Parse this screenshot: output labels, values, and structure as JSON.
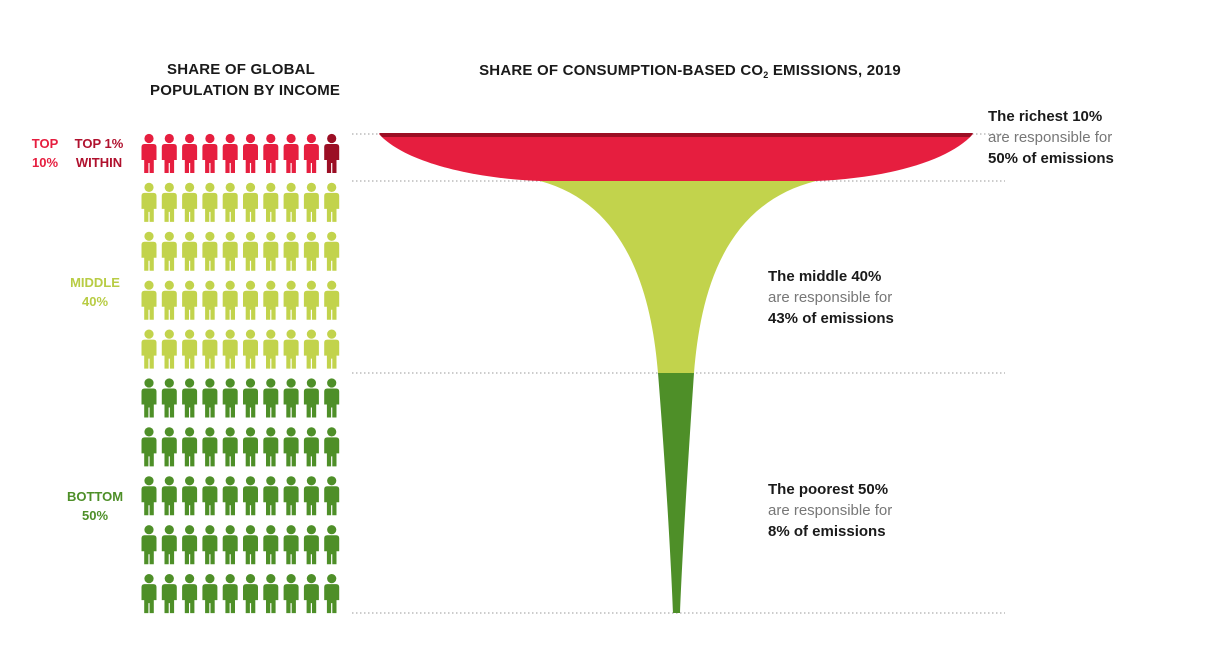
{
  "headings": {
    "population": [
      "SHARE OF GLOBAL",
      "POPULATION BY INCOME"
    ],
    "emissions": {
      "before": "SHARE OF CONSUMPTION-BASED CO",
      "sub": "2",
      "after": " EMISSIONS, 2019"
    }
  },
  "groups": {
    "top": {
      "label": [
        "TOP",
        "10%"
      ],
      "color": "#e61e3f"
    },
    "top1": {
      "label": [
        "TOP 1%",
        "WITHIN"
      ],
      "color": "#9b0e24"
    },
    "middle": {
      "label": [
        "MIDDLE",
        "40%"
      ],
      "color": "#c2d34c"
    },
    "bottom": {
      "label": [
        "BOTTOM",
        "50%"
      ],
      "color": "#4e8f28"
    }
  },
  "annotations": {
    "rich": [
      "The richest 10%",
      "are responsible for",
      "50% of emissions"
    ],
    "middle": [
      "The middle 40%",
      "are responsible for",
      "43% of emissions"
    ],
    "poor": [
      "The poorest 50%",
      "are responsible for",
      "8% of emissions"
    ]
  },
  "chart_data": {
    "type": "funnel",
    "population_share": [
      {
        "group": "Top 10%",
        "value": 10
      },
      {
        "group": "Middle 40%",
        "value": 40
      },
      {
        "group": "Bottom 50%",
        "value": 50
      },
      {
        "group": "Top 1% within",
        "value": 1
      }
    ],
    "emissions_share": [
      {
        "group": "Richest 10%",
        "value": 50
      },
      {
        "group": "Middle 40%",
        "value": 43
      },
      {
        "group": "Poorest 50%",
        "value": 8
      }
    ],
    "people_icons": {
      "total": 100,
      "columns": 10,
      "rows": 10
    }
  }
}
